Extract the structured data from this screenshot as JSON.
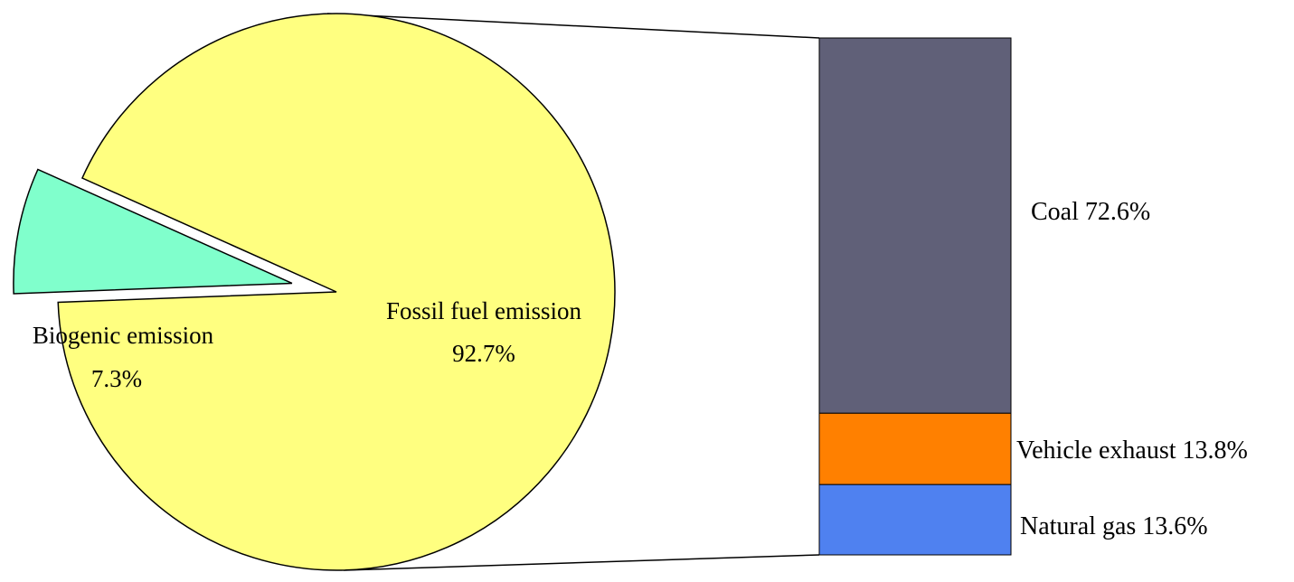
{
  "chart_data": [
    {
      "type": "pie",
      "slices": [
        {
          "label": "Fossil fuel emission",
          "value_label": "92.7%",
          "value": 92.7,
          "color": "#ffff80"
        },
        {
          "label": "Biogenic emission",
          "value_label": "7.3%",
          "value": 7.3,
          "color": "#80ffcc",
          "exploded": true
        }
      ]
    },
    {
      "type": "bar",
      "stacked": true,
      "breakdown_of": "Fossil fuel emission",
      "series": [
        {
          "name": "Coal",
          "text": "Coal 72.6%",
          "value": 72.6,
          "color": "#606078"
        },
        {
          "name": "Vehicle exhaust",
          "text": "Vehicle exhaust 13.8%",
          "value": 13.8,
          "color": "#ff8000"
        },
        {
          "name": "Natural gas",
          "text": "Natural gas 13.6%",
          "value": 13.6,
          "color": "#4f81f0"
        }
      ]
    }
  ]
}
